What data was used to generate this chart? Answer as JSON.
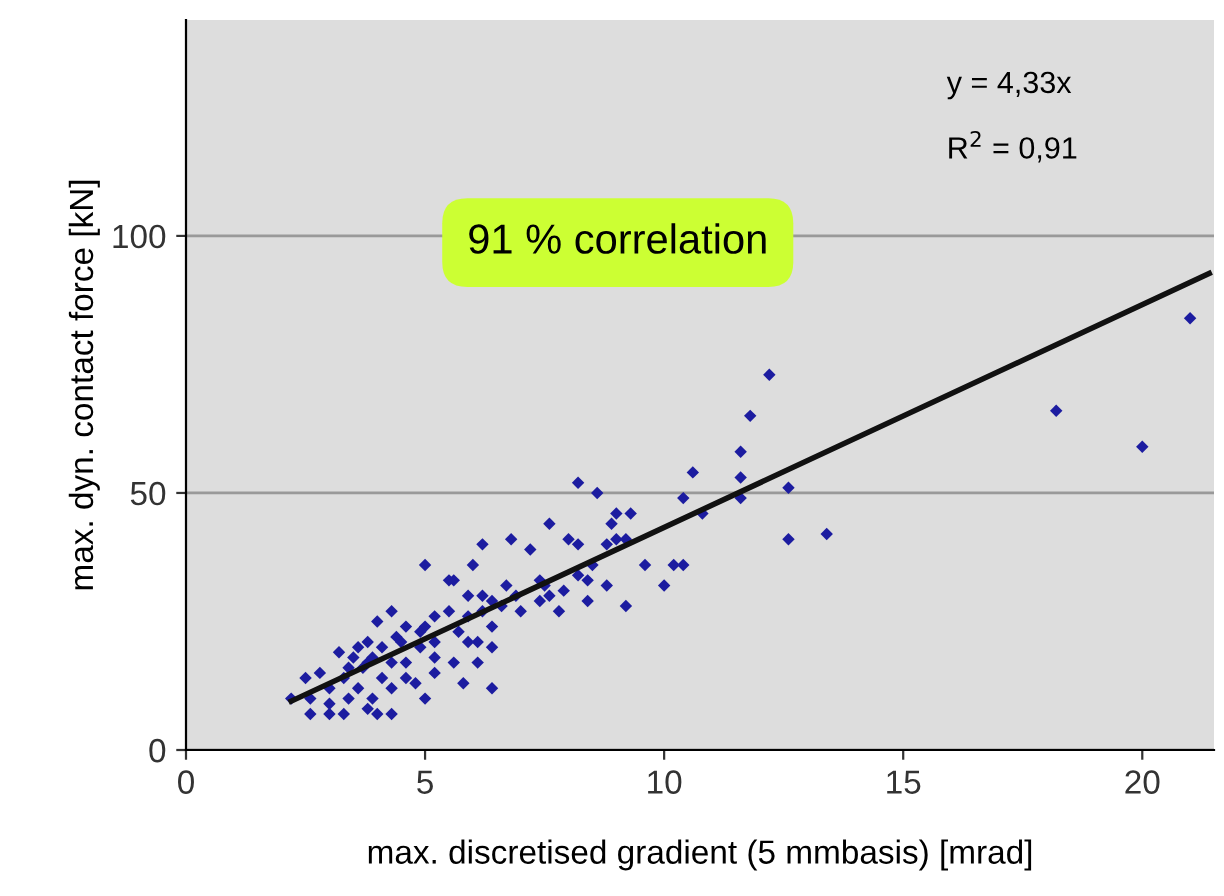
{
  "chart_data": {
    "type": "scatter",
    "xlabel": "max. discretised gradient (5 mmbasis) [mrad]",
    "ylabel": "max. dyn. contact force [kN]",
    "xlim": [
      0,
      21.5
    ],
    "ylim": [
      0,
      142
    ],
    "xticks": [
      0,
      5,
      10,
      15,
      20
    ],
    "yticks": [
      0,
      50,
      100
    ],
    "grid": "y",
    "marker": "diamond",
    "legend": false,
    "annotations": [
      "y = 4,33x",
      "R$^{2}$ = 0,91",
      "91 % correlation"
    ],
    "series": [
      {
        "color": "#1c1ca0",
        "x": [
          12.2,
          11.8,
          11.6,
          11.6,
          11.6,
          10.6,
          10.4,
          10.8,
          12.6,
          12.6,
          13.4,
          18.2,
          20.0,
          21.0,
          8.2,
          8.6,
          9.3,
          9.0,
          8.9,
          9.0,
          8.8,
          9.2,
          8.2,
          7.6,
          8.0,
          9.6,
          10.2,
          10.4,
          10.0,
          9.2,
          8.8,
          8.4,
          8.4,
          7.8,
          7.6,
          7.4,
          7.0,
          7.2,
          6.8,
          6.2,
          6.0,
          5.0,
          5.6,
          6.7,
          7.4,
          6.4,
          5.8,
          6.1,
          5.6,
          5.2,
          5.0,
          4.8,
          4.3,
          4.0,
          3.8,
          3.3,
          3.0,
          2.6,
          2.2,
          2.5,
          3.0,
          3.3,
          3.6,
          3.9,
          4.3,
          3.8,
          3.2,
          3.6,
          3.9,
          4.3,
          4.6,
          4.3,
          4.0,
          4.6,
          5.0,
          5.2,
          5.5,
          5.9,
          6.2,
          6.4,
          6.4,
          6.1,
          5.7,
          5.2,
          4.9,
          4.5,
          4.1,
          3.8,
          3.5,
          3.4,
          2.8,
          2.6,
          3.0,
          3.4,
          4.1,
          4.6,
          5.2,
          5.9,
          6.6,
          6.9,
          7.5,
          7.9,
          8.2,
          8.5,
          6.2,
          5.5,
          5.9,
          6.4,
          4.4,
          4.9,
          3.7
        ],
        "values": [
          73,
          65,
          58,
          53,
          49,
          54,
          49,
          46,
          51,
          41,
          42,
          66,
          59,
          84,
          52,
          50,
          46,
          46,
          44,
          41,
          40,
          41,
          40,
          44,
          41,
          36,
          36,
          36,
          32,
          28,
          32,
          33,
          29,
          27,
          30,
          29,
          27,
          39,
          41,
          40,
          36,
          36,
          33,
          32,
          33,
          12,
          13,
          17,
          17,
          15,
          10,
          13,
          7,
          7,
          8,
          7,
          7,
          7,
          10,
          14,
          12,
          14,
          12,
          10,
          12,
          17,
          19,
          20,
          18,
          17,
          17,
          27,
          25,
          24,
          24,
          26,
          27,
          26,
          27,
          24,
          20,
          21,
          23,
          21,
          20,
          21,
          20,
          21,
          18,
          16,
          15,
          10,
          9,
          10,
          14,
          14,
          18,
          21,
          28,
          30,
          32,
          31,
          34,
          36,
          30,
          33,
          30,
          29,
          22,
          23,
          16
        ]
      },
      {
        "type": "line",
        "color": "#111111",
        "marker": "none",
        "x": [
          2.2,
          21.4
        ],
        "values": [
          9.5,
          92.7
        ]
      }
    ]
  }
}
